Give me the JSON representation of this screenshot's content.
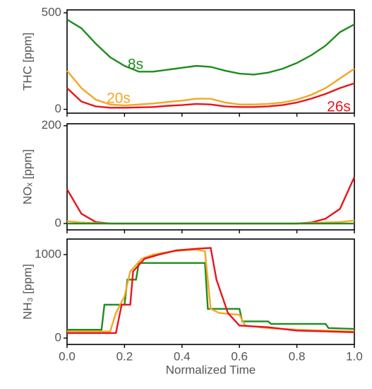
{
  "chart_data": [
    {
      "type": "line",
      "ylabel": "THC [ppm]",
      "xlim": [
        0,
        1
      ],
      "ylim": [
        -20,
        515
      ],
      "yticks": [
        0,
        500
      ],
      "x": [
        0,
        0.05,
        0.1,
        0.15,
        0.2,
        0.25,
        0.3,
        0.35,
        0.4,
        0.45,
        0.5,
        0.55,
        0.6,
        0.65,
        0.7,
        0.75,
        0.8,
        0.85,
        0.9,
        0.95,
        1.0
      ],
      "series": [
        {
          "name": "8s",
          "color": "#1e8c1e",
          "values": [
            465,
            420,
            340,
            270,
            225,
            195,
            195,
            205,
            215,
            225,
            220,
            200,
            185,
            180,
            190,
            210,
            240,
            280,
            330,
            400,
            440
          ]
        },
        {
          "name": "20s",
          "color": "#f5a623",
          "values": [
            200,
            110,
            50,
            25,
            20,
            25,
            30,
            38,
            45,
            55,
            55,
            35,
            25,
            25,
            28,
            35,
            50,
            75,
            110,
            160,
            210
          ]
        },
        {
          "name": "26s",
          "color": "#e8141e",
          "values": [
            110,
            40,
            15,
            8,
            8,
            10,
            12,
            18,
            22,
            28,
            25,
            15,
            12,
            12,
            15,
            22,
            35,
            55,
            80,
            110,
            135
          ]
        }
      ]
    },
    {
      "type": "line",
      "ylabel": "NOₓ [ppm]",
      "xlim": [
        0,
        1
      ],
      "ylim": [
        -13,
        204
      ],
      "yticks": [
        0,
        200
      ],
      "x": [
        0,
        0.05,
        0.1,
        0.15,
        0.2,
        0.3,
        0.4,
        0.5,
        0.6,
        0.7,
        0.8,
        0.85,
        0.9,
        0.95,
        1.0
      ],
      "series": [
        {
          "name": "26s",
          "color": "#e8141e",
          "values": [
            70,
            20,
            3,
            0,
            0,
            0,
            0,
            0,
            0,
            0,
            0,
            2,
            10,
            30,
            95
          ]
        },
        {
          "name": "20s",
          "color": "#f5a623",
          "values": [
            5,
            2,
            1,
            0,
            0,
            0,
            0,
            0,
            0,
            0,
            0,
            1,
            2,
            3,
            6
          ]
        },
        {
          "name": "8s",
          "color": "#1e8c1e",
          "values": [
            0,
            0,
            0,
            0,
            0,
            0,
            0,
            0,
            0,
            0,
            0,
            0,
            0,
            0,
            0
          ]
        }
      ]
    },
    {
      "type": "line",
      "ylabel": "NH₃ [ppm]",
      "xlabel": "Normalized Time",
      "xlim": [
        0,
        1
      ],
      "ylim": [
        -76,
        1186
      ],
      "yticks": [
        0,
        1000
      ],
      "xticks": [
        {
          "value": 0,
          "label": "0.0"
        },
        {
          "value": 0.2,
          "label": "0.2"
        },
        {
          "value": 0.4,
          "label": "0.4"
        },
        {
          "value": 0.6,
          "label": "0.6"
        },
        {
          "value": 0.8,
          "label": "0.8"
        },
        {
          "value": 1,
          "label": "1.0"
        }
      ],
      "series": [
        {
          "name": "8s",
          "color": "#1e8c1e",
          "x": [
            0,
            0.12,
            0.13,
            0.2,
            0.21,
            0.24,
            0.25,
            0.48,
            0.49,
            0.6,
            0.61,
            0.7,
            0.71,
            0.9,
            0.91,
            1
          ],
          "values": [
            100,
            100,
            400,
            400,
            700,
            700,
            900,
            900,
            350,
            350,
            200,
            200,
            170,
            170,
            120,
            110
          ]
        },
        {
          "name": "20s",
          "color": "#f5a623",
          "x": [
            0,
            0.15,
            0.17,
            0.2,
            0.22,
            0.26,
            0.3,
            0.35,
            0.4,
            0.45,
            0.48,
            0.5,
            0.53,
            0.6,
            0.62,
            0.7,
            0.8,
            0.9,
            1
          ],
          "values": [
            80,
            80,
            300,
            500,
            800,
            950,
            1000,
            1030,
            1050,
            1060,
            1040,
            350,
            300,
            280,
            150,
            120,
            100,
            90,
            80
          ]
        },
        {
          "name": "26s",
          "color": "#e8141e",
          "x": [
            0,
            0.17,
            0.19,
            0.22,
            0.23,
            0.27,
            0.32,
            0.38,
            0.45,
            0.5,
            0.52,
            0.54,
            0.56,
            0.6,
            0.7,
            0.8,
            0.9,
            1
          ],
          "values": [
            60,
            60,
            400,
            400,
            800,
            950,
            1000,
            1050,
            1070,
            1080,
            700,
            500,
            300,
            150,
            130,
            90,
            80,
            70
          ]
        }
      ]
    }
  ]
}
